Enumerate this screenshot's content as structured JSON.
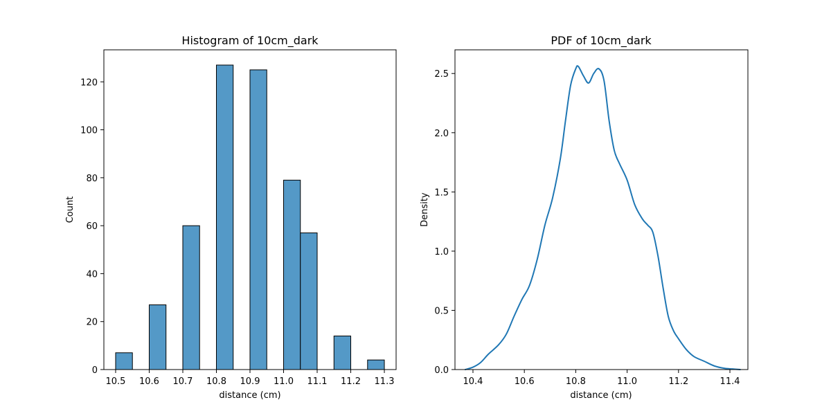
{
  "chart_data": [
    {
      "type": "bar",
      "title": "Histogram of 10cm_dark",
      "xlabel": "distance (cm)",
      "ylabel": "Count",
      "xlim": [
        10.465,
        11.335
      ],
      "ylim": [
        0,
        133.35
      ],
      "xticks": [
        "10.5",
        "10.6",
        "10.7",
        "10.8",
        "10.9",
        "11.0",
        "11.1",
        "11.2",
        "11.3"
      ],
      "yticks": [
        "0",
        "20",
        "40",
        "60",
        "80",
        "100",
        "120"
      ],
      "grid": false,
      "bin_width": 0.05,
      "bins": [
        {
          "left": 10.5,
          "count": 7
        },
        {
          "left": 10.6,
          "count": 27
        },
        {
          "left": 10.7,
          "count": 60
        },
        {
          "left": 10.8,
          "count": 127
        },
        {
          "left": 10.9,
          "count": 125
        },
        {
          "left": 11.0,
          "count": 79
        },
        {
          "left": 11.05,
          "count": 57
        },
        {
          "left": 11.15,
          "count": 14
        },
        {
          "left": 11.25,
          "count": 4
        }
      ],
      "bar_color": "#5499c7",
      "edge_color": "#000000"
    },
    {
      "type": "line",
      "title": "PDF of 10cm_dark",
      "xlabel": "distance (cm)",
      "ylabel": "Density",
      "xlim": [
        10.33,
        11.47
      ],
      "ylim": [
        0,
        2.7
      ],
      "xticks": [
        "10.4",
        "10.6",
        "10.8",
        "11.0",
        "11.2",
        "11.4"
      ],
      "yticks": [
        "0.0",
        "0.5",
        "1.0",
        "1.5",
        "2.0",
        "2.5"
      ],
      "grid": false,
      "line_color": "#1f77b4",
      "x": [
        10.37,
        10.4,
        10.43,
        10.46,
        10.5,
        10.53,
        10.56,
        10.59,
        10.62,
        10.65,
        10.68,
        10.71,
        10.74,
        10.76,
        10.78,
        10.8,
        10.81,
        10.83,
        10.85,
        10.87,
        10.89,
        10.91,
        10.93,
        10.95,
        10.97,
        11.0,
        11.03,
        11.06,
        11.08,
        11.1,
        11.12,
        11.14,
        11.16,
        11.18,
        11.2,
        11.23,
        11.26,
        11.3,
        11.34,
        11.38,
        11.41,
        11.44
      ],
      "y": [
        0.0,
        0.02,
        0.06,
        0.13,
        0.21,
        0.3,
        0.45,
        0.59,
        0.71,
        0.93,
        1.22,
        1.45,
        1.78,
        2.1,
        2.4,
        2.54,
        2.56,
        2.48,
        2.42,
        2.5,
        2.54,
        2.44,
        2.1,
        1.85,
        1.74,
        1.6,
        1.39,
        1.27,
        1.22,
        1.16,
        0.96,
        0.69,
        0.45,
        0.33,
        0.26,
        0.17,
        0.11,
        0.07,
        0.03,
        0.01,
        0.005,
        0.0
      ]
    }
  ]
}
